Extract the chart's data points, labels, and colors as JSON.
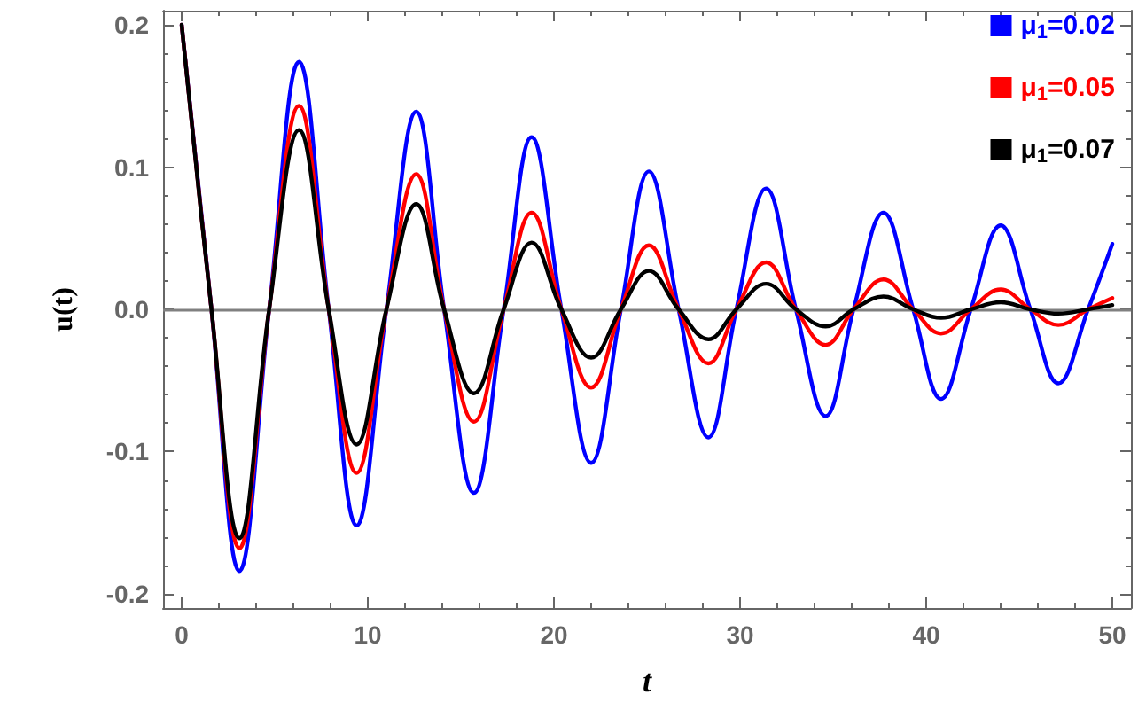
{
  "chart_data": {
    "type": "line",
    "xlabel": "t",
    "ylabel": "u(t)",
    "x": [
      0,
      1.6,
      3.1,
      4.7,
      6.3,
      7.9,
      9.4,
      11.0,
      12.6,
      14.1,
      15.7,
      17.3,
      18.8,
      20.4,
      22.0,
      23.6,
      25.1,
      26.7,
      28.3,
      29.8,
      31.4,
      33.0,
      34.6,
      36.1,
      37.7,
      39.3,
      40.8,
      42.4,
      44.0,
      45.6,
      47.1,
      48.7,
      50
    ],
    "series": [
      {
        "name": "μ$_{1}$=0.02",
        "color": "#0000ff",
        "values": [
          0.2,
          0,
          -0.184,
          0,
          0.174,
          0,
          -0.152,
          0,
          0.139,
          0,
          -0.129,
          0,
          0.121,
          0,
          -0.108,
          0,
          0.097,
          0,
          -0.09,
          0,
          0.085,
          0,
          -0.075,
          0,
          0.068,
          0,
          -0.063,
          0,
          0.059,
          0,
          -0.052,
          0,
          0.046
        ]
      },
      {
        "name": "μ$_{1}$=0.05",
        "color": "#ff0000",
        "values": [
          0.2,
          0,
          -0.168,
          0,
          0.143,
          0,
          -0.115,
          0,
          0.095,
          0,
          -0.079,
          0,
          0.068,
          0,
          -0.055,
          0,
          0.045,
          0,
          -0.038,
          0,
          0.033,
          0,
          -0.025,
          0,
          0.021,
          0,
          -0.017,
          0,
          0.014,
          0,
          -0.011,
          0,
          0.008
        ]
      },
      {
        "name": "μ$_{1}$=0.07",
        "color": "#000000",
        "values": [
          0.2,
          0,
          -0.161,
          0,
          0.126,
          0,
          -0.095,
          0,
          0.074,
          0,
          -0.059,
          0,
          0.047,
          0,
          -0.034,
          0,
          0.027,
          0,
          -0.021,
          0,
          0.018,
          0,
          -0.012,
          0,
          0.009,
          0,
          -0.006,
          0,
          0.005,
          0,
          -0.003,
          0,
          0.003
        ]
      }
    ],
    "xlim": [
      -1,
      51
    ],
    "xticks": [
      0,
      10,
      20,
      30,
      40,
      50
    ],
    "ylim": [
      -0.21,
      0.21
    ],
    "yticks": [
      -0.2,
      -0.1,
      {
        "value": 0,
        "label": "0.0"
      },
      0.1,
      0.2
    ],
    "ref_lines": [
      {
        "axis": "y",
        "value": 0,
        "color": "#808080"
      }
    ],
    "grid": false,
    "legend": "top right",
    "marker": "none",
    "line_style": "solid"
  }
}
